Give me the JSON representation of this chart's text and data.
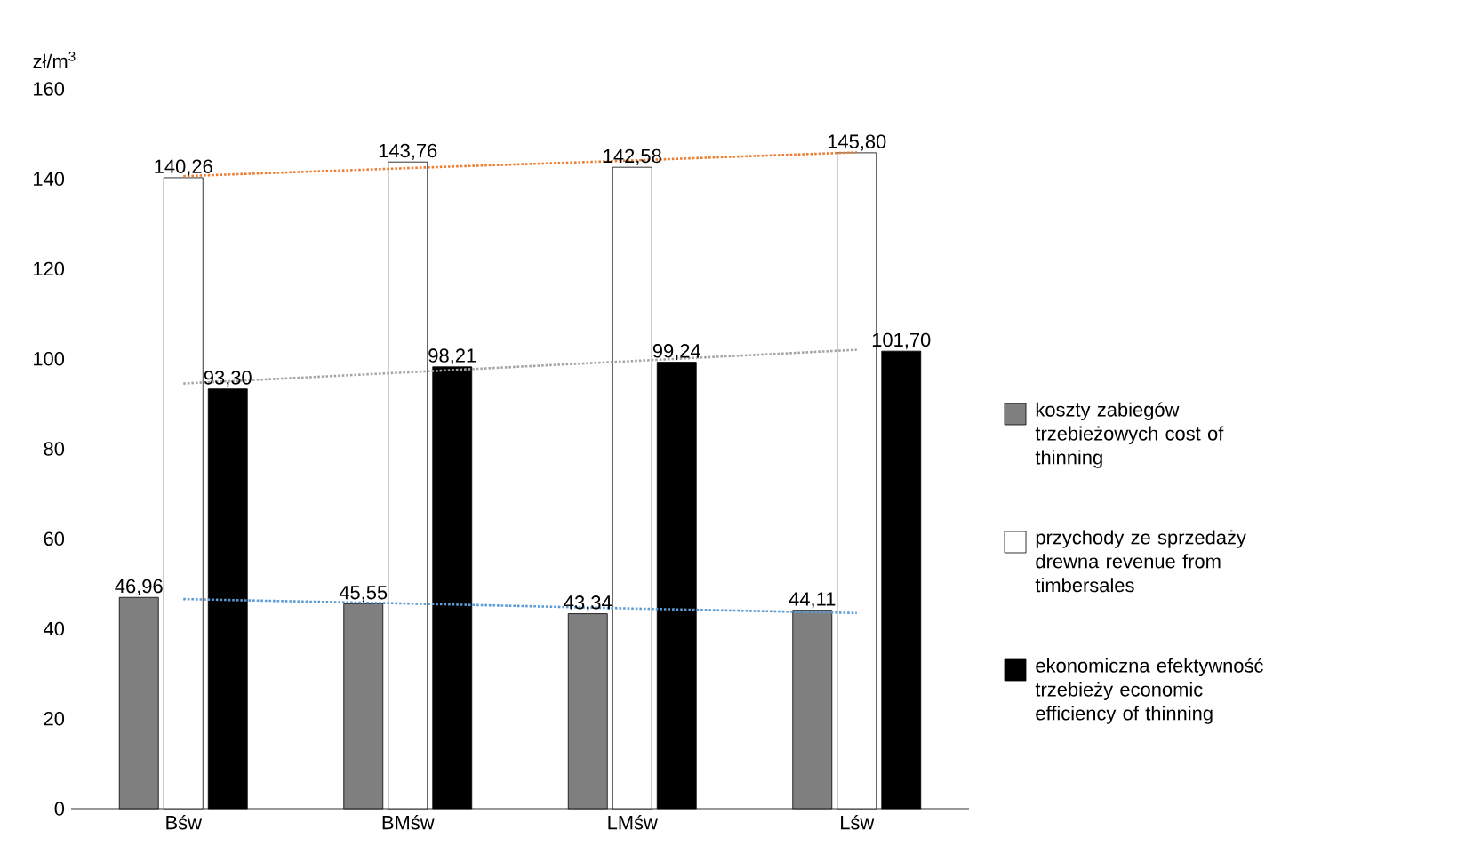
{
  "chart_data": {
    "type": "bar",
    "ylabel": "zł/m$^{3}$",
    "categories": [
      "Bśw",
      "BMśw",
      "LMśw",
      "Lśw"
    ],
    "ylim": [
      0,
      160
    ],
    "yticks": [
      0,
      20,
      40,
      60,
      80,
      100,
      120,
      140,
      160
    ],
    "legend": "right",
    "series": [
      {
        "name": "koszty zabiegów trzebieżowych cost of thinning",
        "color": "#7f7f7f",
        "values": [
          46.96,
          45.55,
          43.34,
          44.11
        ],
        "value_labels": [
          "46,96",
          "45,55",
          "43,34",
          "44,11"
        ]
      },
      {
        "name": "przychody ze sprzedaży drewna revenue from timbersales",
        "color": "#ffffff",
        "values": [
          140.26,
          143.76,
          142.58,
          145.8
        ],
        "value_labels": [
          "140,26",
          "143,76",
          "142,58",
          "145,80"
        ]
      },
      {
        "name": "ekonomiczna efektywność trzebieży economic efficiency of thinning",
        "color": "#000000",
        "values": [
          93.3,
          98.21,
          99.24,
          101.7
        ],
        "value_labels": [
          "93,30",
          "98,21",
          "99,24",
          "101,70"
        ]
      },
      {
        "type": "line",
        "line_style": "dotted",
        "color": "#ed7d31",
        "values": [
          140.6,
          142.4,
          144.1,
          145.9
        ]
      },
      {
        "type": "line",
        "line_style": "dotted",
        "color": "#a5a5a5",
        "values": [
          94.5,
          97,
          99.5,
          102
        ]
      },
      {
        "type": "line",
        "line_style": "dotted",
        "color": "#5b9bd5",
        "values": [
          46.6,
          45.6,
          44.5,
          43.5
        ]
      }
    ]
  }
}
